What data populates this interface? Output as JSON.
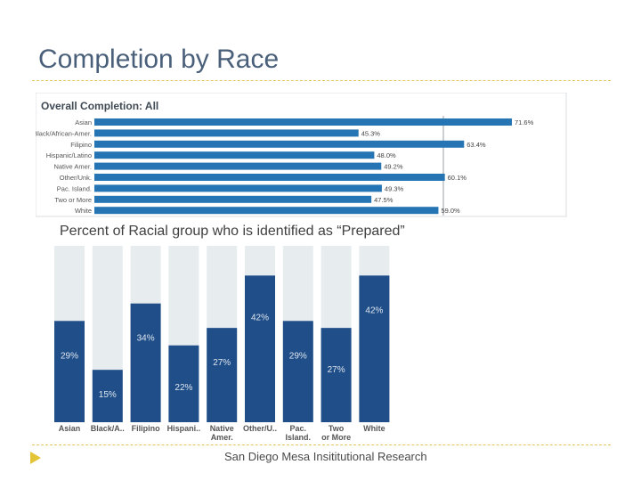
{
  "slide": {
    "title": "Completion by Race",
    "caption": "Percent of Racial group who is identified as “Prepared”",
    "footer": "San Diego Mesa Insititutional Research"
  },
  "colors": {
    "bar_blue": "#2574b4",
    "column_blue": "#1f4e89",
    "column_bg": "#e7ecef",
    "accent_gold": "#e3c436",
    "title_text": "#4a607a"
  },
  "chart_data": [
    {
      "type": "bar",
      "orientation": "horizontal",
      "title": "Overall Completion: All",
      "categories": [
        "Asian",
        "Black/African-Amer.",
        "Filipino",
        "Hispanic/Latino",
        "Native Amer.",
        "Other/Unk.",
        "Pac. Island.",
        "Two or More",
        "White"
      ],
      "values": [
        71.6,
        45.3,
        63.4,
        48.0,
        49.2,
        60.1,
        49.3,
        47.5,
        59.0
      ],
      "value_labels": [
        "71.6%",
        "45.3%",
        "63.4%",
        "48.0%",
        "49.2%",
        "60.1%",
        "49.3%",
        "47.5%",
        "59.0%"
      ],
      "xlim": [
        0,
        80
      ],
      "xlabel": "",
      "ylabel": ""
    },
    {
      "type": "bar",
      "orientation": "vertical",
      "stacked_percent": true,
      "title": "Percent of Racial group who is identified as “Prepared”",
      "categories": [
        "Asian",
        "Black/A..",
        "Filipino",
        "Hispani..",
        "Native Amer.",
        "Other/U..",
        "Pac. Island.",
        "Two or More",
        "White"
      ],
      "values": [
        29,
        15,
        34,
        22,
        27,
        42,
        29,
        27,
        42
      ],
      "value_labels": [
        "29%",
        "15%",
        "34%",
        "22%",
        "27%",
        "42%",
        "29%",
        "27%",
        "42%"
      ],
      "ylim": [
        0,
        100
      ],
      "xlabel": "",
      "ylabel": ""
    }
  ]
}
